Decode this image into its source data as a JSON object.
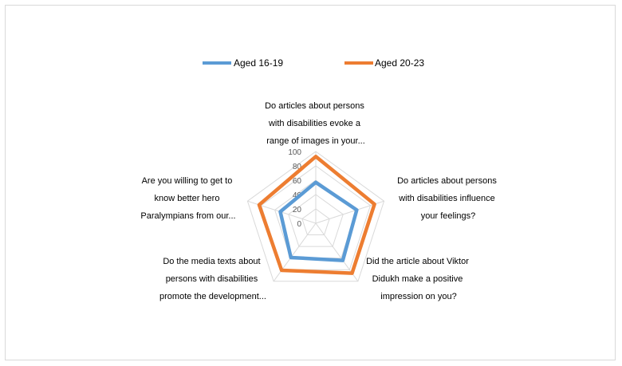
{
  "chart_data": {
    "type": "radar",
    "categories": [
      [
        "Do articles about persons",
        "with disabilities evoke a",
        "range of images in your..."
      ],
      [
        "Do articles about persons",
        "with disabilities influence",
        "your feelings?"
      ],
      [
        "Did the article about Viktor",
        "Didukh make a positive",
        "impression on you?"
      ],
      [
        "Do the media texts about",
        "persons with disabilities",
        "promote the development..."
      ],
      [
        "Are you willing to get to",
        "know better hero",
        "Paralympians from our..."
      ]
    ],
    "series": [
      {
        "name": "Aged 16-19",
        "values": [
          57,
          60,
          64,
          59,
          52
        ],
        "color": "#5b9bd5"
      },
      {
        "name": "Aged 20-23",
        "values": [
          93,
          86,
          86,
          81,
          83
        ],
        "color": "#ed7d31"
      }
    ],
    "ticks": [
      "0",
      "20",
      "40",
      "60",
      "80",
      "100"
    ],
    "rlim": [
      0,
      100
    ],
    "legend_position": "top",
    "grid": true
  }
}
